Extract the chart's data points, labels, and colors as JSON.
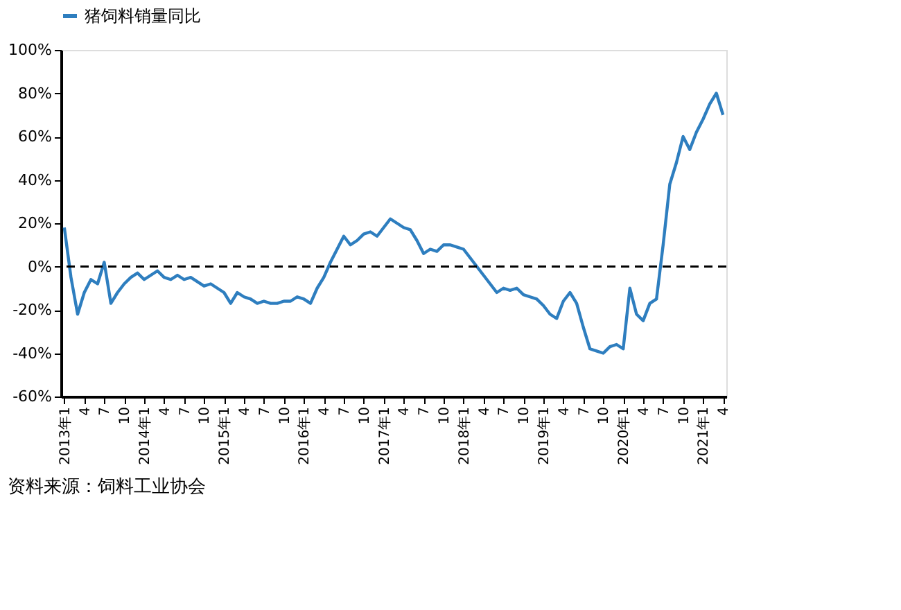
{
  "chart_data": {
    "type": "line",
    "categories": [
      "2013年1",
      null,
      null,
      "4",
      null,
      null,
      "7",
      null,
      null,
      "10",
      null,
      null,
      "2014年1",
      null,
      null,
      "4",
      null,
      null,
      "7",
      null,
      null,
      "10",
      null,
      null,
      "2015年1",
      null,
      null,
      "4",
      null,
      null,
      "7",
      null,
      null,
      "10",
      null,
      null,
      "2016年1",
      null,
      null,
      "4",
      null,
      null,
      "7",
      null,
      null,
      "10",
      null,
      null,
      "2017年1",
      null,
      null,
      "4",
      null,
      null,
      "7",
      null,
      null,
      "10",
      null,
      null,
      "2018年1",
      null,
      null,
      "4",
      null,
      null,
      "7",
      null,
      null,
      "10",
      null,
      null,
      "2019年1",
      null,
      null,
      "4",
      null,
      null,
      "7",
      null,
      null,
      "10",
      null,
      null,
      "2020年1",
      null,
      null,
      "4",
      null,
      null,
      "7",
      null,
      null,
      "10",
      null,
      null,
      "2021年1",
      null,
      null,
      "4"
    ],
    "series": [
      {
        "name": "猪饲料销量同比",
        "color": "#2e7ebf",
        "values": [
          18,
          -5,
          -22,
          -12,
          -6,
          -8,
          2,
          -17,
          -12,
          -8,
          -5,
          -3,
          -6,
          -4,
          -2,
          -5,
          -6,
          -4,
          -6,
          -5,
          -7,
          -9,
          -8,
          -10,
          -12,
          -17,
          -12,
          -14,
          -15,
          -17,
          -16,
          -17,
          -17,
          -16,
          -16,
          -14,
          -15,
          -17,
          -10,
          -5,
          2,
          8,
          14,
          10,
          12,
          15,
          16,
          14,
          18,
          22,
          20,
          18,
          17,
          12,
          6,
          8,
          7,
          10,
          10,
          9,
          8,
          4,
          0,
          -4,
          -8,
          -12,
          -10,
          -11,
          -10,
          -13,
          -14,
          -15,
          -18,
          -22,
          -24,
          -16,
          -12,
          -17,
          -28,
          -38,
          -39,
          -40,
          -37,
          -36,
          -38,
          -10,
          -22,
          -25,
          -17,
          -15,
          10,
          38,
          48,
          60,
          54,
          62,
          68,
          75,
          80,
          70
        ]
      }
    ],
    "ylim": [
      -60,
      100
    ],
    "yticks": [
      {
        "value": -60,
        "label": "-60%"
      },
      {
        "value": -40,
        "label": "-40%"
      },
      {
        "value": -20,
        "label": "-20%"
      },
      {
        "value": 0,
        "label": "0%"
      },
      {
        "value": 20,
        "label": "20%"
      },
      {
        "value": 40,
        "label": "40%"
      },
      {
        "value": 60,
        "label": "60%"
      },
      {
        "value": 80,
        "label": "80%"
      },
      {
        "value": 100,
        "label": "100%"
      }
    ],
    "ref_lines": [
      {
        "axis": "y",
        "value": 0,
        "color": "#000000",
        "line_style": "dashed"
      }
    ],
    "grid": false,
    "legend": "top",
    "marker": "none",
    "line_style": "solid",
    "annotations": [
      "资料来源：饲料工业协会"
    ]
  }
}
